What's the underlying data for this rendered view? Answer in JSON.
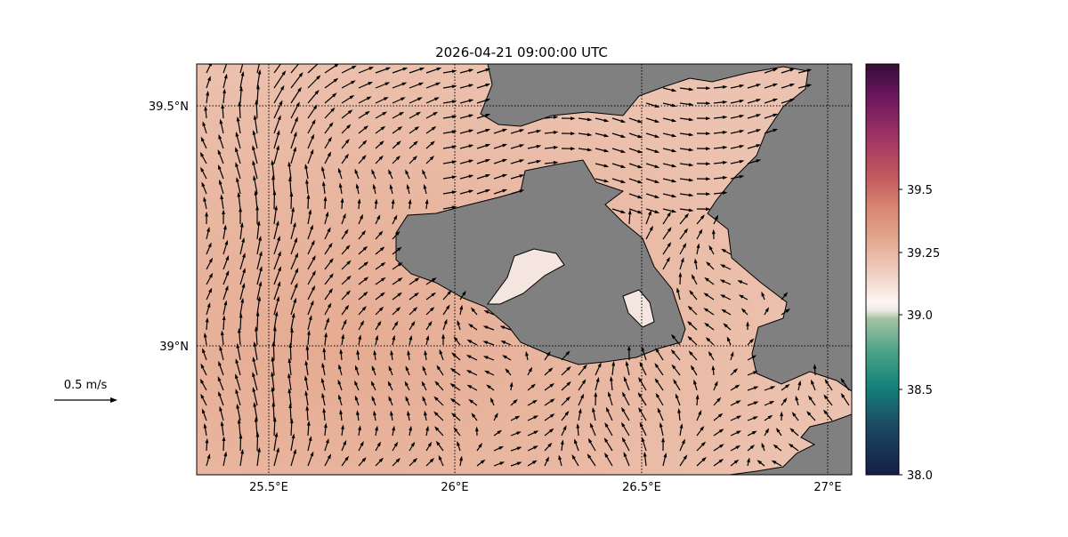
{
  "title": "2026-04-21 09:00:00 UTC",
  "x_ticks": [
    "25.5°E",
    "26°E",
    "26.5°E",
    "27°E"
  ],
  "x_tick_values": [
    25.5,
    26.0,
    26.5,
    27.0
  ],
  "y_ticks": [
    "39.5°N",
    "39°N"
  ],
  "y_tick_values": [
    39.5,
    39.0
  ],
  "extent": {
    "lon": [
      25.3,
      27.06
    ],
    "lat": [
      38.73,
      39.59
    ]
  },
  "colorbar": {
    "ticks": [
      "38.0",
      "38.5",
      "39.0",
      "39.25",
      "39.5"
    ],
    "tick_values": [
      38.0,
      38.5,
      39.0,
      39.25,
      39.5
    ],
    "colormap": "curl-like diverging",
    "colors": {
      "low": "#151d44",
      "mid": "#fdf5f3",
      "high": "#340d35"
    }
  },
  "quiver_key": {
    "label": "0.5 m/s",
    "value": 0.5
  },
  "colors": {
    "land": "#808080",
    "water_field": "#e8b8a2",
    "arrow": "#000000",
    "gridline": "#000000"
  }
}
